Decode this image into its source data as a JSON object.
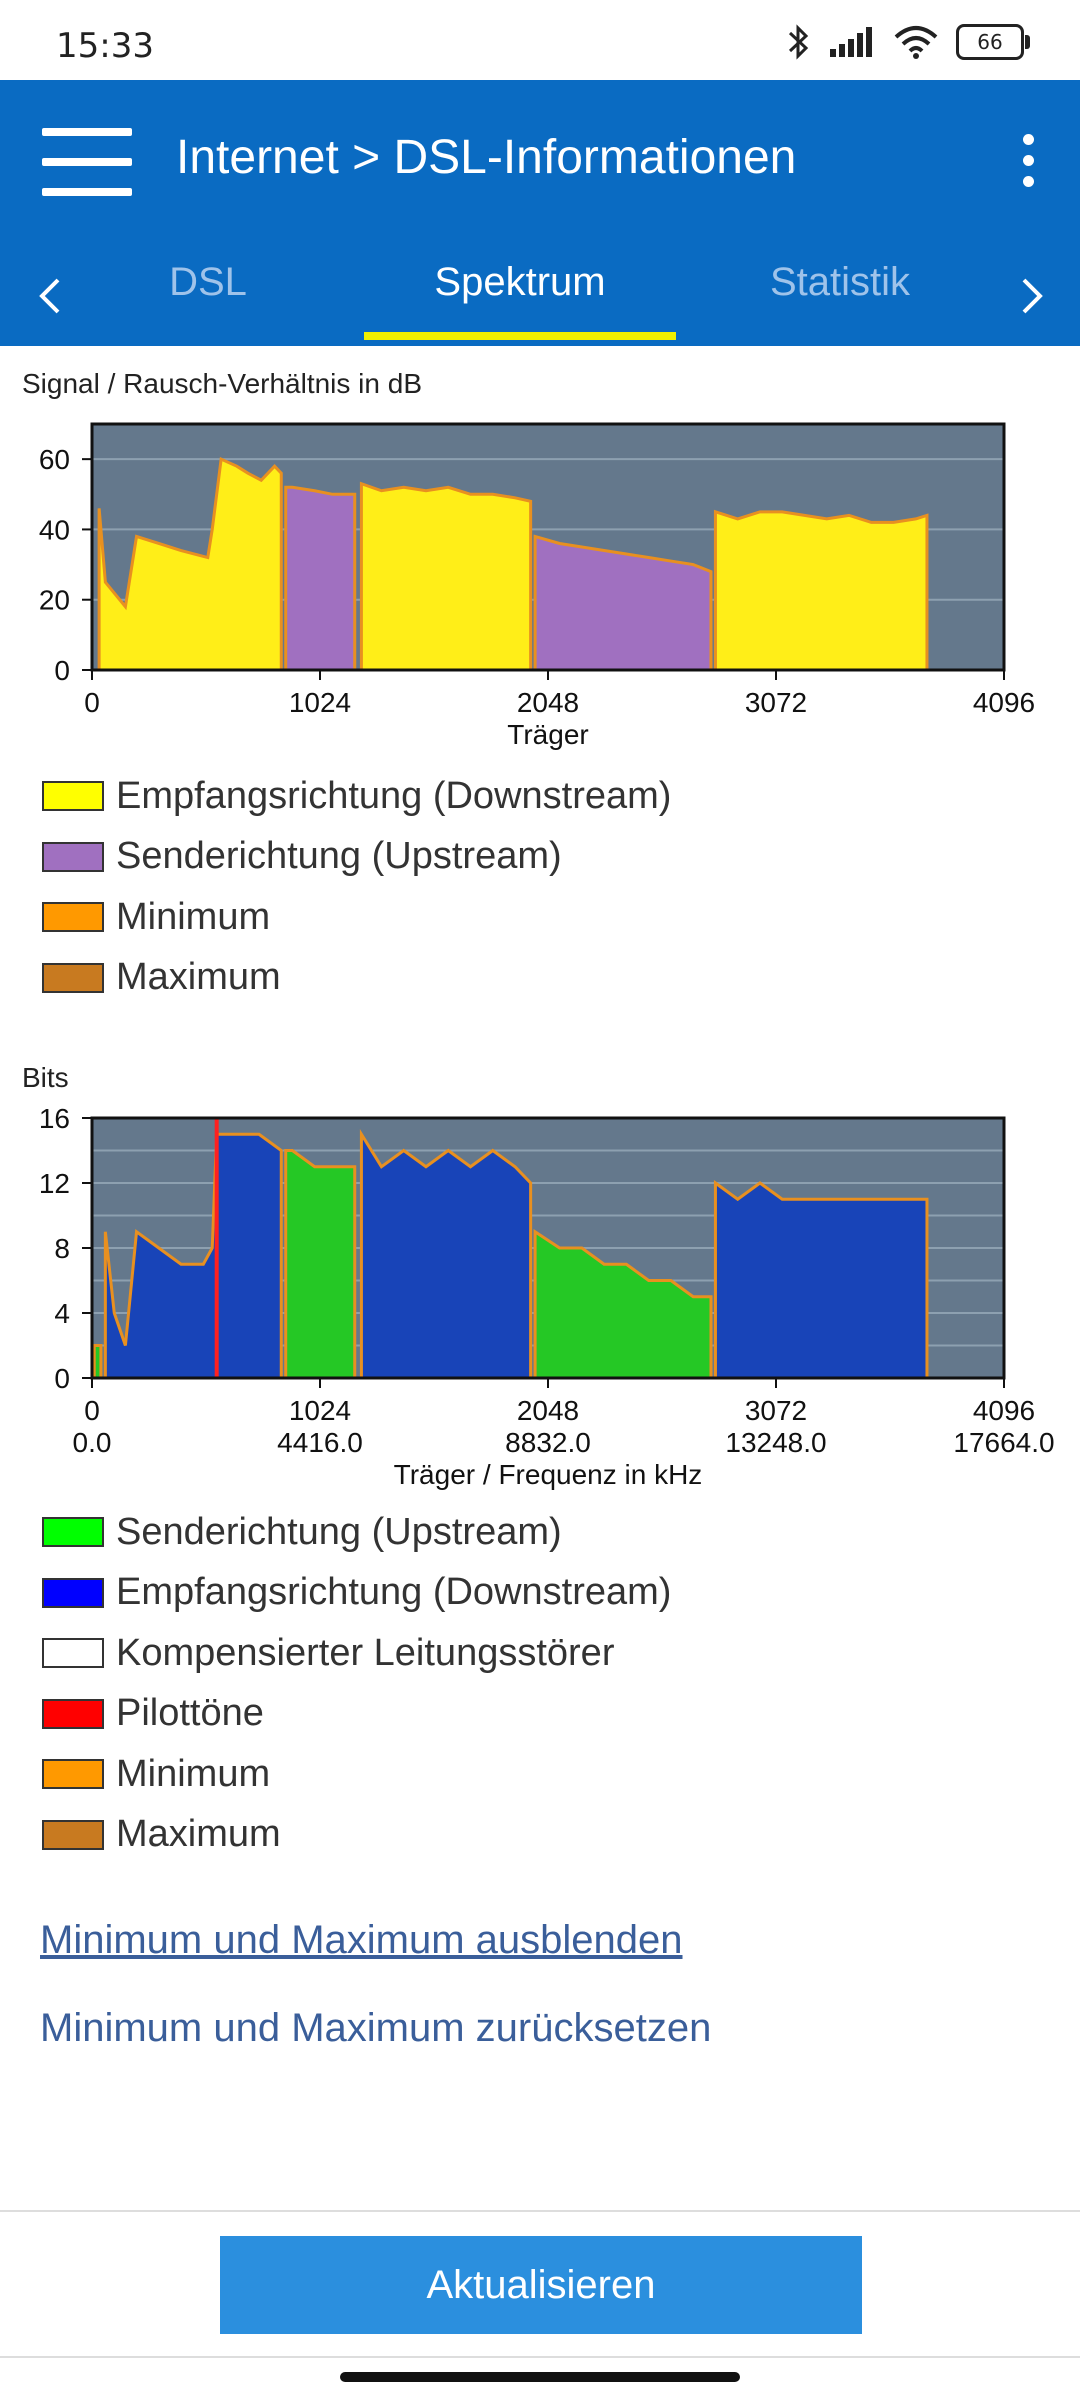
{
  "status": {
    "time": "15:33",
    "battery": "66"
  },
  "appbar": {
    "title": "Internet > DSL-Informationen"
  },
  "tabs": [
    {
      "label": "DSL",
      "active": false
    },
    {
      "label": "Spektrum",
      "active": true
    },
    {
      "label": "Statistik",
      "active": false
    }
  ],
  "snr_chart": {
    "title": "Signal / Rausch-Verhältnis in dB",
    "xlabel": "Träger",
    "xticks": [
      "0",
      "1024",
      "2048",
      "3072",
      "4096"
    ],
    "yticks": [
      "0",
      "20",
      "40",
      "60"
    ],
    "legend": [
      {
        "label": "Empfangsrichtung (Downstream)",
        "color": "#ffff00"
      },
      {
        "label": "Senderichtung (Upstream)",
        "color": "#a070c0"
      },
      {
        "label": "Minimum",
        "color": "#ff9900"
      },
      {
        "label": "Maximum",
        "color": "#c87a20"
      }
    ]
  },
  "bits_chart": {
    "title": "Bits",
    "xlabel": "Träger / Frequenz in kHz",
    "xticks": [
      "0",
      "1024",
      "2048",
      "3072",
      "4096"
    ],
    "xticks2": [
      "0.0",
      "4416.0",
      "8832.0",
      "13248.0",
      "17664.0"
    ],
    "yticks": [
      "0",
      "4",
      "8",
      "12",
      "16"
    ],
    "legend": [
      {
        "label": "Senderichtung (Upstream)",
        "color": "#00ff00"
      },
      {
        "label": "Empfangsrichtung (Downstream)",
        "color": "#0000ff"
      },
      {
        "label": "Kompensierter Leitungsstörer",
        "color": "#ffffff"
      },
      {
        "label": "Pilottöne",
        "color": "#ff0000"
      },
      {
        "label": "Minimum",
        "color": "#ff9900"
      },
      {
        "label": "Maximum",
        "color": "#c87a20"
      }
    ]
  },
  "chart_data": [
    {
      "type": "area",
      "title": "Signal / Rausch-Verhältnis in dB",
      "xlabel": "Träger",
      "ylabel": "dB",
      "xlim": [
        0,
        4096
      ],
      "ylim": [
        0,
        70
      ],
      "series": [
        {
          "name": "Empfangsrichtung (Downstream)",
          "color": "#ffee18",
          "segments": [
            {
              "x": [
                32,
                60,
                150,
                200,
                300,
                400,
                520,
                540,
                580,
                650,
                700,
                760,
                820,
                850
              ],
              "y": [
                46,
                25,
                18,
                38,
                36,
                34,
                32,
                40,
                60,
                58,
                56,
                54,
                58,
                56
              ]
            },
            {
              "x": [
                1210,
                1300,
                1400,
                1500,
                1600,
                1700,
                1800,
                1900,
                1970
              ],
              "y": [
                53,
                51,
                52,
                51,
                52,
                50,
                50,
                49,
                48
              ]
            },
            {
              "x": [
                2800,
                2900,
                3000,
                3100,
                3200,
                3300,
                3400,
                3500,
                3600,
                3700,
                3750
              ],
              "y": [
                45,
                43,
                45,
                45,
                44,
                43,
                44,
                42,
                42,
                43,
                44
              ]
            }
          ]
        },
        {
          "name": "Senderichtung (Upstream)",
          "color": "#a070c0",
          "segments": [
            {
              "x": [
                870,
                900,
                1000,
                1080,
                1180
              ],
              "y": [
                52,
                52,
                51,
                50,
                50
              ]
            },
            {
              "x": [
                1990,
                2100,
                2200,
                2300,
                2400,
                2500,
                2600,
                2700,
                2780
              ],
              "y": [
                38,
                36,
                35,
                34,
                33,
                32,
                31,
                30,
                28
              ]
            }
          ]
        }
      ]
    },
    {
      "type": "area",
      "title": "Bits",
      "xlabel": "Träger / Frequenz in kHz",
      "ylabel": "Bits",
      "xlim": [
        0,
        4096
      ],
      "ylim": [
        0,
        16
      ],
      "series": [
        {
          "name": "Empfangsrichtung (Downstream)",
          "color": "#1844b8",
          "segments": [
            {
              "x": [
                60,
                100,
                150,
                200,
                300,
                400,
                500,
                540,
                560,
                580,
                650,
                750,
                850
              ],
              "y": [
                9,
                4,
                2,
                9,
                8,
                7,
                7,
                8,
                15,
                15,
                15,
                15,
                14
              ]
            },
            {
              "x": [
                1210,
                1300,
                1400,
                1500,
                1600,
                1700,
                1800,
                1900,
                1970
              ],
              "y": [
                15,
                13,
                14,
                13,
                14,
                13,
                14,
                13,
                12
              ]
            },
            {
              "x": [
                2800,
                2900,
                3000,
                3100,
                3200,
                3300,
                3400,
                3500,
                3600,
                3700,
                3750
              ],
              "y": [
                12,
                11,
                12,
                11,
                11,
                11,
                11,
                11,
                11,
                11,
                11
              ]
            }
          ]
        },
        {
          "name": "Senderichtung (Upstream)",
          "color": "#25c825",
          "segments": [
            {
              "x": [
                10,
                40
              ],
              "y": [
                2,
                2
              ]
            },
            {
              "x": [
                870,
                900,
                1000,
                1080,
                1180
              ],
              "y": [
                14,
                14,
                13,
                13,
                13
              ]
            },
            {
              "x": [
                1990,
                2100,
                2200,
                2300,
                2400,
                2500,
                2600,
                2700,
                2780
              ],
              "y": [
                9,
                8,
                8,
                7,
                7,
                6,
                6,
                5,
                5
              ]
            }
          ]
        },
        {
          "name": "Pilottöne",
          "color": "#ff2020",
          "x": [
            560
          ],
          "y": [
            16
          ]
        }
      ]
    }
  ],
  "links": {
    "toggle": "Minimum und Maximum ausblenden",
    "reset": "Minimum und Maximum zurücksetzen"
  },
  "button": {
    "refresh": "Aktualisieren"
  },
  "colors": {
    "appbar": "#0a6bc2",
    "chartBg": "#64788c",
    "button": "#2b8fde"
  }
}
